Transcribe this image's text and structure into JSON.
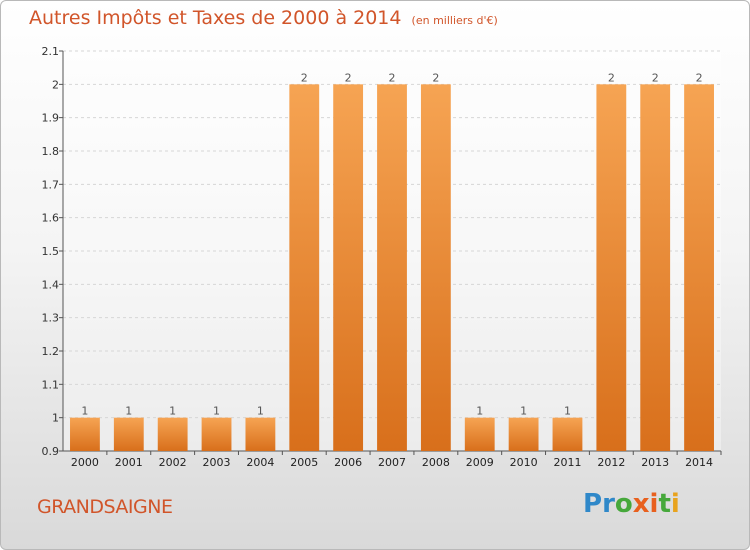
{
  "header": {
    "title": "Autres Impôts et Taxes de 2000 à 2014",
    "subtitle": "(en milliers d'€)"
  },
  "footer": {
    "commune": "GRANDSAIGNE",
    "brand": "Proxiti"
  },
  "colors": {
    "bar_top": "#f6a453",
    "bar_bottom": "#d86f1b",
    "text_accent": "#d1552a",
    "logo_letters": [
      "#2f88c9",
      "#2f88c9",
      "#46a83b",
      "#e8601e",
      "#e8601e",
      "#46a83b",
      "#e8a31e"
    ]
  },
  "chart_data": {
    "type": "bar",
    "title": "Autres Impôts et Taxes de 2000 à 2014",
    "subtitle": "(en milliers d'€)",
    "categories": [
      "2000",
      "2001",
      "2002",
      "2003",
      "2004",
      "2005",
      "2006",
      "2007",
      "2008",
      "2009",
      "2010",
      "2011",
      "2012",
      "2013",
      "2014"
    ],
    "values": [
      1,
      1,
      1,
      1,
      1,
      2,
      2,
      2,
      2,
      1,
      1,
      1,
      2,
      2,
      2
    ],
    "data_labels": [
      "1",
      "1",
      "1",
      "1",
      "1",
      "2",
      "2",
      "2",
      "2",
      "1",
      "1",
      "1",
      "2",
      "2",
      "2"
    ],
    "ylim": [
      0.9,
      2.1
    ],
    "yticks": [
      "0.9",
      "1",
      "1.1",
      "1.2",
      "1.3",
      "1.4",
      "1.5",
      "1.6",
      "1.7",
      "1.8",
      "1.9",
      "2",
      "2.1"
    ],
    "grid": true
  }
}
